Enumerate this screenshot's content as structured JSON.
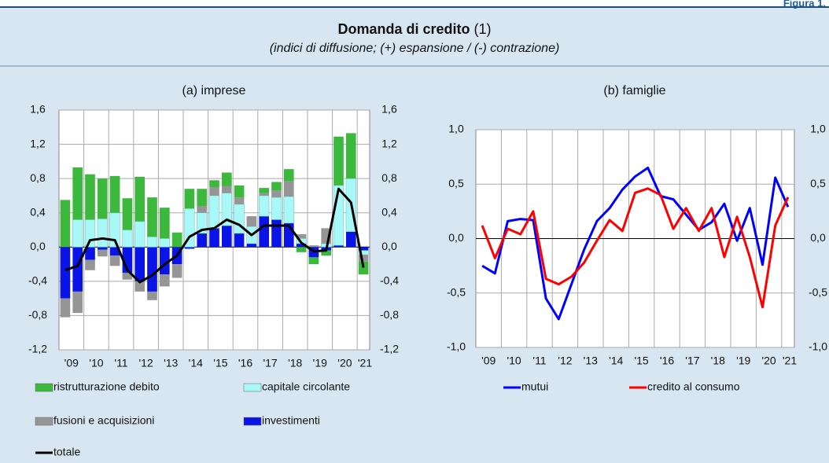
{
  "header": {
    "figure": "Figura 1.",
    "title": "Domanda di credito",
    "note": "(1)",
    "subtitle": "(indici di diffusione; (+) espansione / (-) contrazione)"
  },
  "chart_data": [
    {
      "type": "bar",
      "stacked": true,
      "title": "(a) imprese",
      "grid": true,
      "categories": [
        "'09",
        null,
        "'10",
        null,
        "'11",
        null,
        "'12",
        null,
        "'13",
        null,
        "'14",
        null,
        "'15",
        null,
        "'16",
        null,
        "'17",
        null,
        "'18",
        null,
        "'19",
        null,
        "'20",
        null,
        "'21"
      ],
      "ylim": [
        -1.2,
        1.6
      ],
      "yticks": [
        {
          "value": -1.2,
          "label": "-1,2"
        },
        {
          "value": -0.8,
          "label": "-0,8"
        },
        {
          "value": -0.4,
          "label": "-0,4"
        },
        {
          "value": 0,
          "label": "0,0"
        },
        {
          "value": 0.4,
          "label": "0,4"
        },
        {
          "value": 0.8,
          "label": "0,8"
        },
        {
          "value": 1.2,
          "label": "1,2"
        },
        {
          "value": 1.6,
          "label": "1,6"
        }
      ],
      "series": [
        {
          "name": "investimenti",
          "color": "#0a14e6",
          "values": [
            -0.6,
            -0.52,
            -0.15,
            -0.03,
            -0.1,
            -0.3,
            -0.4,
            -0.52,
            -0.32,
            -0.2,
            -0.02,
            0.16,
            0.22,
            0.25,
            0.16,
            0.04,
            0.36,
            0.32,
            0.28,
            0.04,
            -0.12,
            -0.04,
            0.02,
            0.18,
            -0.04
          ]
        },
        {
          "name": "capitale circolante",
          "color": "#a8f8f8",
          "values": [
            0,
            0.32,
            0.32,
            0.33,
            0.4,
            0.2,
            0.3,
            0.12,
            0.1,
            0,
            0.45,
            0.24,
            0.38,
            0.38,
            0.34,
            0.2,
            0.24,
            0.26,
            0.31,
            0.06,
            0,
            0.04,
            0.7,
            0.62,
            -0.05
          ]
        },
        {
          "name": "fusioni e acquisizioni",
          "color": "#959595",
          "values": [
            -0.22,
            -0.25,
            -0.12,
            -0.08,
            -0.12,
            -0.08,
            -0.12,
            -0.1,
            -0.14,
            -0.16,
            0,
            0.08,
            0.1,
            0.08,
            0.08,
            0.12,
            0.03,
            0.08,
            0.18,
            0.05,
            0.02,
            0.18,
            0,
            0,
            -0.08
          ]
        },
        {
          "name": "ristrutturazione debito",
          "color": "#3cb83c",
          "values": [
            0.55,
            0.61,
            0.53,
            0.47,
            0.43,
            0.37,
            0.52,
            0.46,
            0.36,
            0.17,
            0.23,
            0.2,
            0.08,
            0.16,
            0.14,
            0,
            0.06,
            0.1,
            0.14,
            -0.06,
            -0.08,
            -0.06,
            0.57,
            0.53,
            -0.15
          ]
        },
        {
          "name": "totale",
          "type": "line",
          "color": "#000000",
          "values": [
            -0.27,
            -0.22,
            0.08,
            0.1,
            0.08,
            -0.27,
            -0.41,
            -0.33,
            -0.2,
            -0.1,
            0.12,
            0.2,
            0.22,
            0.32,
            0.26,
            0.14,
            0.25,
            0.25,
            0.25,
            0.05,
            -0.05,
            -0.04,
            0.68,
            0.52,
            -0.24
          ]
        }
      ]
    },
    {
      "type": "line",
      "title": "(b) famiglie",
      "grid": true,
      "categories": [
        "'09",
        null,
        "'10",
        null,
        "'11",
        null,
        "'12",
        null,
        "'13",
        null,
        "'14",
        null,
        "'15",
        null,
        "'16",
        null,
        "'17",
        null,
        "'18",
        null,
        "'19",
        null,
        "'20",
        null,
        "'21"
      ],
      "ylim": [
        -1,
        1
      ],
      "yticks": [
        {
          "value": -1,
          "label": "-1,0"
        },
        {
          "value": -0.5,
          "label": "-0,5"
        },
        {
          "value": 0,
          "label": "0,0"
        },
        {
          "value": 0.5,
          "label": "0,5"
        },
        {
          "value": 1,
          "label": "1,0"
        }
      ],
      "series": [
        {
          "name": "mutui",
          "color": "#0000ff",
          "values": [
            -0.25,
            -0.32,
            0.16,
            0.18,
            0.17,
            -0.55,
            -0.74,
            -0.42,
            -0.1,
            0.16,
            0.28,
            0.45,
            0.57,
            0.65,
            0.39,
            0.36,
            0.22,
            0.08,
            0.15,
            0.32,
            -0.02,
            0.28,
            -0.24,
            0.56,
            0.29
          ]
        },
        {
          "name": "credito al consumo",
          "color": "#ff0000",
          "values": [
            0.12,
            -0.18,
            0.09,
            0.04,
            0.25,
            -0.37,
            -0.42,
            -0.35,
            -0.22,
            -0.02,
            0.17,
            0.07,
            0.42,
            0.46,
            0.4,
            0.09,
            0.28,
            0.07,
            0.28,
            -0.17,
            0.2,
            -0.17,
            -0.63,
            0.12,
            0.38
          ]
        }
      ]
    }
  ]
}
